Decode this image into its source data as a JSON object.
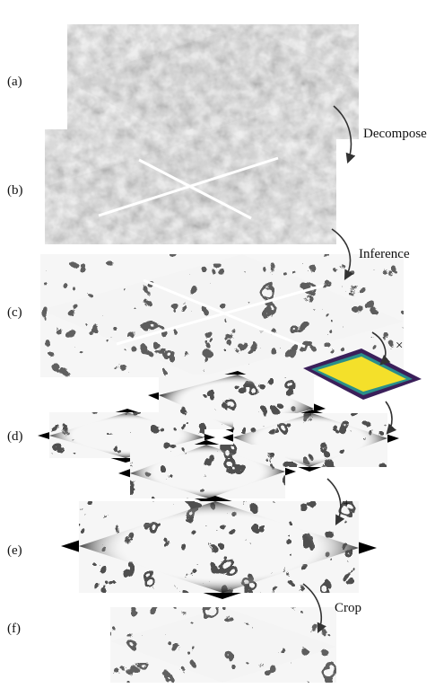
{
  "panels": [
    {
      "id": "a",
      "label": "(a)"
    },
    {
      "id": "b",
      "label": "(b)"
    },
    {
      "id": "c",
      "label": "(c)"
    },
    {
      "id": "d",
      "label": "(d)"
    },
    {
      "id": "e",
      "label": "(e)"
    },
    {
      "id": "f",
      "label": "(f)"
    }
  ],
  "steps": {
    "decompose": "Decompose",
    "inference": "Inference",
    "multiply": "×",
    "add": "+",
    "crop": "Crop"
  },
  "colors": {
    "em_gray": "#9a9a9a",
    "seg_bg": "#e6e6e6",
    "membrane": "#151515",
    "weight_outer": "#3b1f5a",
    "weight_mid": "#2a8f8a",
    "weight_inner": "#f4e02a",
    "border": "#000000"
  }
}
